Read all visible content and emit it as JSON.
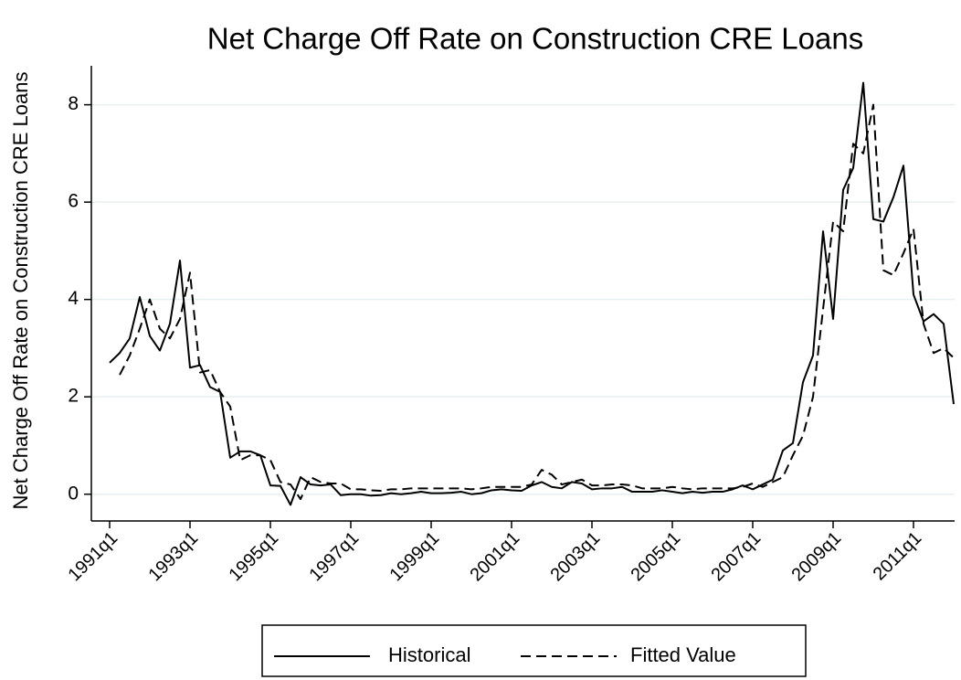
{
  "chart_data": {
    "type": "line",
    "title": "Net Charge Off Rate on Construction CRE Loans",
    "y_label": "Net Charge Off Rate on Construction CRE Loans",
    "categories": [
      "1991q1",
      null,
      null,
      null,
      null,
      null,
      null,
      null,
      "1993q1",
      null,
      null,
      null,
      null,
      null,
      null,
      null,
      "1995q1",
      null,
      null,
      null,
      null,
      null,
      null,
      null,
      "1997q1",
      null,
      null,
      null,
      null,
      null,
      null,
      null,
      "1999q1",
      null,
      null,
      null,
      null,
      null,
      null,
      null,
      "2001q1",
      null,
      null,
      null,
      null,
      null,
      null,
      null,
      "2003q1",
      null,
      null,
      null,
      null,
      null,
      null,
      null,
      "2005q1",
      null,
      null,
      null,
      null,
      null,
      null,
      null,
      "2007q1",
      null,
      null,
      null,
      null,
      null,
      null,
      null,
      "2009q1",
      null,
      null,
      null,
      null,
      null,
      null,
      null,
      "2011q1",
      null,
      null,
      null,
      null
    ],
    "series": [
      {
        "name": "Historical",
        "color": "#000000",
        "style": "solid",
        "values": [
          2.7,
          2.9,
          3.2,
          4.05,
          3.25,
          2.95,
          3.5,
          4.8,
          2.6,
          2.65,
          2.2,
          2.1,
          0.75,
          0.88,
          0.88,
          0.8,
          0.18,
          0.17,
          -0.22,
          0.35,
          0.2,
          0.18,
          0.2,
          -0.02,
          0.0,
          0.0,
          -0.03,
          -0.02,
          0.02,
          0.0,
          0.02,
          0.05,
          0.02,
          0.02,
          0.03,
          0.05,
          0.0,
          0.02,
          0.08,
          0.1,
          0.08,
          0.07,
          0.18,
          0.25,
          0.15,
          0.12,
          0.25,
          0.22,
          0.1,
          0.12,
          0.12,
          0.15,
          0.05,
          0.05,
          0.05,
          0.08,
          0.05,
          0.02,
          0.05,
          0.03,
          0.05,
          0.05,
          0.1,
          0.18,
          0.1,
          0.2,
          0.3,
          0.9,
          1.05,
          2.3,
          2.85,
          5.4,
          3.6,
          6.25,
          6.7,
          8.45,
          5.65,
          5.6,
          6.1,
          6.75,
          4.1,
          3.55,
          3.7,
          3.5,
          1.85
        ]
      },
      {
        "name": "Fitted Value",
        "color": "#000000",
        "style": "dashed",
        "values": [
          null,
          2.45,
          2.85,
          3.4,
          4.0,
          3.4,
          3.2,
          3.6,
          4.55,
          2.5,
          2.55,
          2.1,
          1.8,
          0.7,
          0.8,
          0.8,
          0.7,
          0.25,
          0.2,
          -0.1,
          0.35,
          0.25,
          0.22,
          0.22,
          0.1,
          0.1,
          0.08,
          0.07,
          0.1,
          0.1,
          0.12,
          0.12,
          0.12,
          0.12,
          0.12,
          0.12,
          0.1,
          0.12,
          0.15,
          0.15,
          0.15,
          0.15,
          0.2,
          0.5,
          0.4,
          0.2,
          0.25,
          0.3,
          0.18,
          0.18,
          0.2,
          0.2,
          0.18,
          0.12,
          0.12,
          0.12,
          0.15,
          0.12,
          0.1,
          0.12,
          0.12,
          0.12,
          0.12,
          0.15,
          0.22,
          0.15,
          0.25,
          0.35,
          0.8,
          1.2,
          2.0,
          3.8,
          5.6,
          5.4,
          7.2,
          7.0,
          8.0,
          4.6,
          4.5,
          4.95,
          5.45,
          3.5,
          2.9,
          3.0,
          2.8
        ]
      }
    ],
    "ylim": [
      -0.55,
      8.8
    ],
    "yticks": [
      0,
      2,
      4,
      6,
      8
    ],
    "grid": true,
    "legend": "bottom"
  }
}
